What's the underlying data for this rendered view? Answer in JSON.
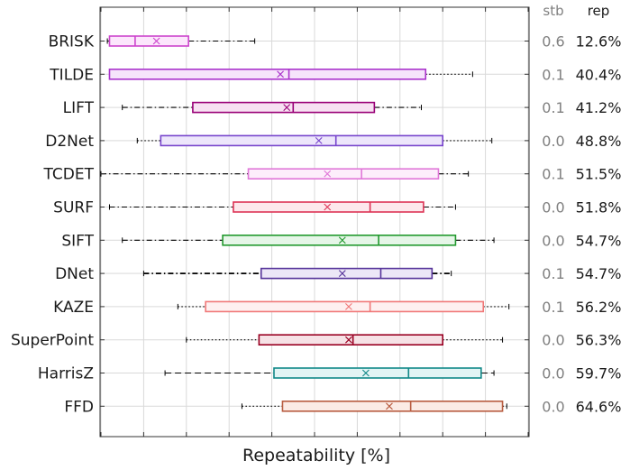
{
  "chart_data": {
    "type": "box",
    "xlabel": "Repeatability [%]",
    "columns": {
      "stb": "stb",
      "rep": "rep"
    },
    "xlim": [
      0,
      100
    ],
    "grid": true,
    "series": [
      {
        "name": "BRISK",
        "whisker_low": 1.5,
        "q1": 2,
        "median": 8,
        "mean": 13,
        "q3": 20.5,
        "whisker_high": 36,
        "stb": "0.6",
        "rep": "12.6%",
        "color": "#cc44cc",
        "fill": "#fce6fc",
        "whisker_style": "dashdot"
      },
      {
        "name": "TILDE",
        "whisker_low": 2,
        "q1": 2,
        "median": 44,
        "mean": 42,
        "q3": 76,
        "whisker_high": 87,
        "stb": "0.1",
        "rep": "40.4%",
        "color": "#aa33cc",
        "fill": "#f6e4fb",
        "whisker_style": "dotted"
      },
      {
        "name": "LIFT",
        "whisker_low": 5,
        "q1": 21.5,
        "median": 45,
        "mean": 43.5,
        "q3": 64,
        "whisker_high": 75,
        "stb": "0.1",
        "rep": "41.2%",
        "color": "#990077",
        "fill": "#f7e1f2",
        "whisker_style": "dashdot"
      },
      {
        "name": "D2Net",
        "whisker_low": 8.5,
        "q1": 14,
        "median": 55,
        "mean": 51,
        "q3": 80,
        "whisker_high": 91.5,
        "stb": "0.0",
        "rep": "48.8%",
        "color": "#7744cc",
        "fill": "#ede6fb",
        "whisker_style": "dotted"
      },
      {
        "name": "TCDET",
        "whisker_low": 0,
        "q1": 34.5,
        "median": 61,
        "mean": 53,
        "q3": 79,
        "whisker_high": 86,
        "stb": "0.1",
        "rep": "51.5%",
        "color": "#e077d8",
        "fill": "#fdeefb",
        "whisker_style": "dashdot"
      },
      {
        "name": "SURF",
        "whisker_low": 2,
        "q1": 31,
        "median": 63,
        "mean": 53,
        "q3": 75.5,
        "whisker_high": 83,
        "stb": "0.0",
        "rep": "51.8%",
        "color": "#dd3355",
        "fill": "#fde8ec",
        "whisker_style": "dashdot"
      },
      {
        "name": "SIFT",
        "whisker_low": 5,
        "q1": 28.5,
        "median": 65,
        "mean": 56.5,
        "q3": 83,
        "whisker_high": 92,
        "stb": "0.0",
        "rep": "54.7%",
        "color": "#22992e",
        "fill": "#e6f6e8",
        "whisker_style": "dashdot"
      },
      {
        "name": "DNet",
        "whisker_low": 10,
        "q1": 37.5,
        "median": 65.5,
        "mean": 56.5,
        "q3": 77.5,
        "whisker_high": 82,
        "stb": "0.1",
        "rep": "54.7%",
        "color": "#553399",
        "fill": "#ece7f7",
        "whisker_style": "dashdot-bold"
      },
      {
        "name": "KAZE",
        "whisker_low": 18,
        "q1": 24.5,
        "median": 63,
        "mean": 58,
        "q3": 89.5,
        "whisker_high": 95.5,
        "stb": "0.1",
        "rep": "56.2%",
        "color": "#f07777",
        "fill": "#fef0f0",
        "whisker_style": "dotted"
      },
      {
        "name": "SuperPoint",
        "whisker_low": 20,
        "q1": 37,
        "median": 59,
        "mean": 58,
        "q3": 80,
        "whisker_high": 94,
        "stb": "0.0",
        "rep": "56.3%",
        "color": "#990022",
        "fill": "#f6e2e6",
        "whisker_style": "dotted"
      },
      {
        "name": "HarrisZ",
        "whisker_low": 15,
        "q1": 40.5,
        "median": 72,
        "mean": 62,
        "q3": 89,
        "whisker_high": 92,
        "stb": "0.0",
        "rep": "59.7%",
        "color": "#118888",
        "fill": "#e2f4f4",
        "whisker_style": "dashed"
      },
      {
        "name": "FFD",
        "whisker_low": 33,
        "q1": 42.5,
        "median": 72.5,
        "mean": 67.5,
        "q3": 94,
        "whisker_high": 95,
        "stb": "0.0",
        "rep": "64.6%",
        "color": "#b85c40",
        "fill": "#fbebe5",
        "whisker_style": "dotted"
      }
    ]
  }
}
